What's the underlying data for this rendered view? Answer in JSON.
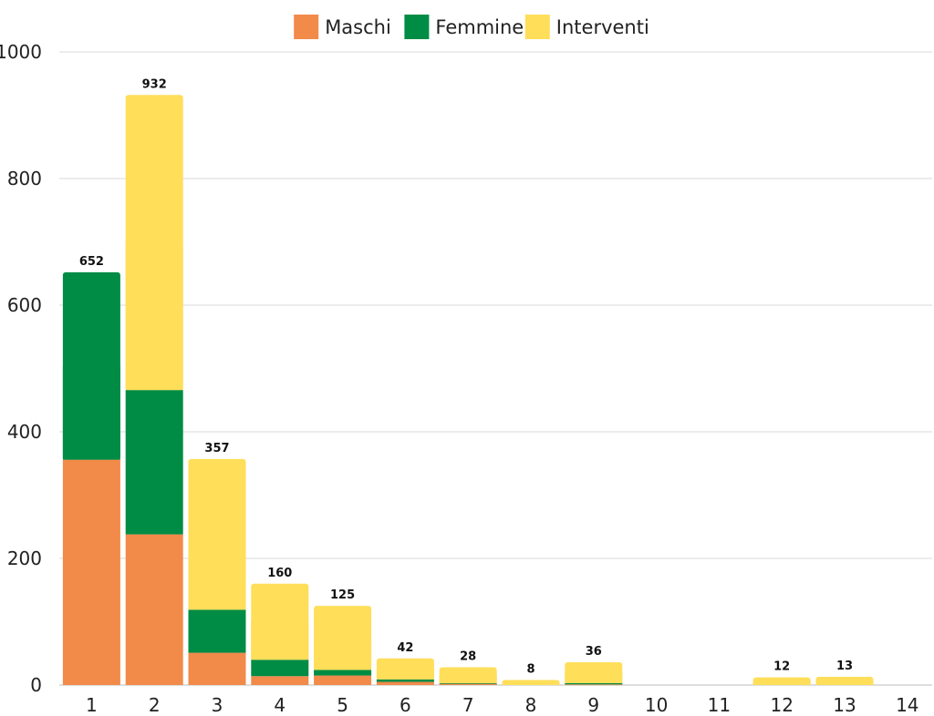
{
  "chart_data": {
    "type": "bar",
    "stacked": true,
    "title": "",
    "xlabel": "",
    "ylabel": "",
    "ylim": [
      0,
      1000
    ],
    "yticks": [
      0,
      200,
      400,
      600,
      800,
      1000
    ],
    "grid": true,
    "legend_position": "top-center",
    "categories": [
      "1",
      "2",
      "3",
      "4",
      "5",
      "6",
      "7",
      "8",
      "9",
      "10",
      "11",
      "12",
      "13",
      "14"
    ],
    "series": [
      {
        "name": "Maschi",
        "color": "#F28A4A",
        "values": [
          356,
          238,
          51,
          14,
          15,
          5,
          2,
          0,
          1,
          0,
          0,
          0,
          0,
          0
        ]
      },
      {
        "name": "Femmine",
        "color": "#008C45",
        "values": [
          296,
          228,
          68,
          26,
          9,
          4,
          1,
          0,
          2,
          0,
          0,
          0,
          0,
          0
        ]
      },
      {
        "name": "Interventi",
        "color": "#FFDE59",
        "values": [
          0,
          466,
          238,
          120,
          101,
          33,
          25,
          8,
          33,
          0,
          0,
          12,
          13,
          0
        ]
      }
    ],
    "totals": [
      "652",
      "932",
      "357",
      "160",
      "125",
      "42",
      "28",
      "8",
      "36",
      "",
      "",
      "12",
      "13",
      ""
    ]
  }
}
